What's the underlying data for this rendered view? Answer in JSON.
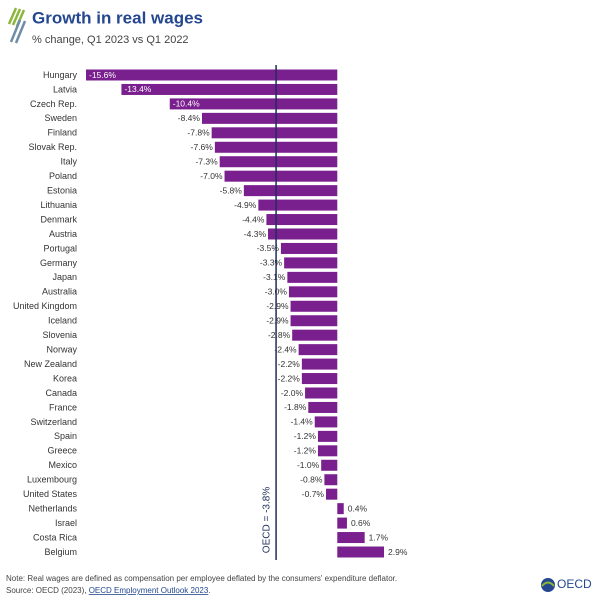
{
  "chart_data": {
    "type": "bar",
    "orientation": "horizontal",
    "title": "Growth in real wages",
    "subtitle": "% change, Q1 2023 vs Q1 2022",
    "categories": [
      "Hungary",
      "Latvia",
      "Czech Rep.",
      "Sweden",
      "Finland",
      "Slovak Rep.",
      "Italy",
      "Poland",
      "Estonia",
      "Lithuania",
      "Denmark",
      "Austria",
      "Portugal",
      "Germany",
      "Japan",
      "Australia",
      "United Kingdom",
      "Iceland",
      "Slovenia",
      "Norway",
      "New Zealand",
      "Korea",
      "Canada",
      "France",
      "Switzerland",
      "Spain",
      "Greece",
      "Mexico",
      "Luxembourg",
      "United States",
      "Netherlands",
      "Israel",
      "Costa Rica",
      "Belgium"
    ],
    "values": [
      -15.6,
      -13.4,
      -10.4,
      -8.4,
      -7.8,
      -7.6,
      -7.3,
      -7.0,
      -5.8,
      -4.9,
      -4.4,
      -4.3,
      -3.5,
      -3.3,
      -3.1,
      -3.0,
      -2.9,
      -2.9,
      -2.8,
      -2.4,
      -2.2,
      -2.2,
      -2.0,
      -1.8,
      -1.4,
      -1.2,
      -1.2,
      -1.0,
      -0.8,
      -0.7,
      0.4,
      0.6,
      1.7,
      2.9
    ],
    "value_labels": [
      "-15.6%",
      "-13.4%",
      "-10.4%",
      "-8.4%",
      "-7.8%",
      "-7.6%",
      "-7.3%",
      "-7.0%",
      "-5.8%",
      "-4.9%",
      "-4.4%",
      "-4.3%",
      "-3.5%",
      "-3.3%",
      "-3.1%",
      "-3.0%",
      "-2.9%",
      "-2.9%",
      "-2.8%",
      "-2.4%",
      "-2.2%",
      "-2.2%",
      "-2.0%",
      "-1.8%",
      "-1.4%",
      "-1.2%",
      "-1.2%",
      "-1.0%",
      "-0.8%",
      "-0.7%",
      "0.4%",
      "0.6%",
      "1.7%",
      "2.9%"
    ],
    "color": "#7a1f8e",
    "reference": {
      "value": -3.8,
      "label": "OECD = -3.8%"
    },
    "note": "Note: Real wages are defined as compensation per employee deflated by the consumers' expenditure deflator.",
    "source": [
      "Source: OECD (2023), ",
      "OECD Employment Outlook 2023",
      "."
    ],
    "logo": "OECD"
  }
}
